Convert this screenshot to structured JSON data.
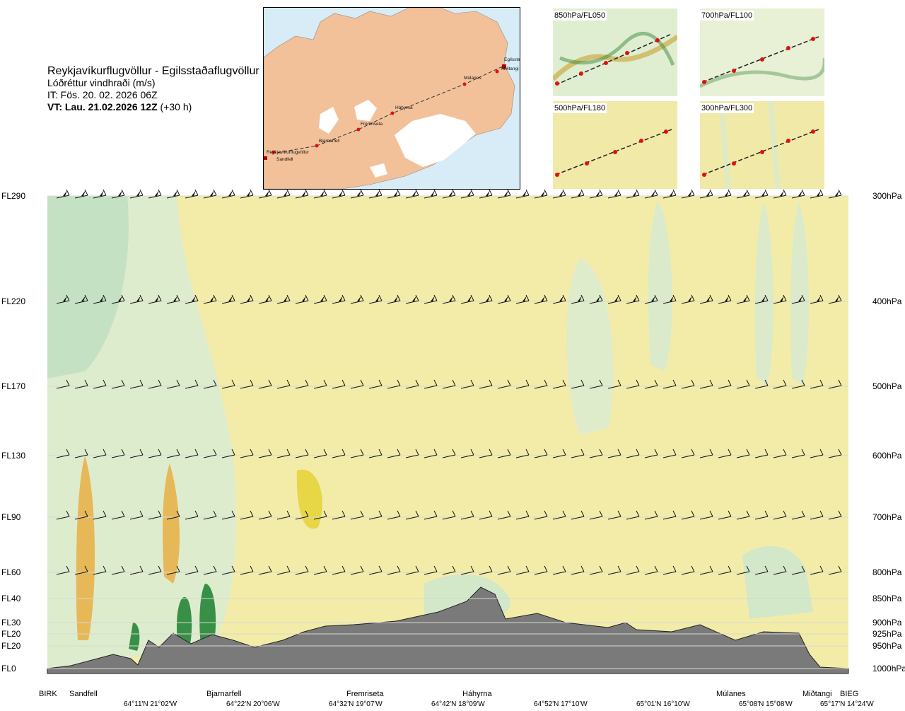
{
  "header": {
    "route": "Reykjavíkurflugvöllur - Egilsstaðaflugvöllur",
    "field": "Lóðréttur vindhraði (m/s)",
    "it": "IT: Fös. 20. 02. 2026 06Z",
    "vt_bold": "VT: Lau. 21.02.2026 12Z",
    "vt_lead": "(+30 h)"
  },
  "map": {
    "waypoints": [
      "Reykjavíkurflugvöllur",
      "Sandfell",
      "Bjarnarfell",
      "Fremriseta",
      "Háhyrna",
      "Múlanes",
      "Miðtangi",
      "Egilsstaðaflugvöllur"
    ]
  },
  "panels": [
    {
      "label": "850hPa/FL050"
    },
    {
      "label": "700hPa/FL100"
    },
    {
      "label": "500hPa/FL180"
    },
    {
      "label": "300hPa/FL300"
    }
  ],
  "colors": {
    "background": "#f3eca8",
    "terrain": "#7a7a7a",
    "route_points": "#e01010",
    "map_land": "#f1b98c",
    "map_sea": "#d7ecf7"
  },
  "chart_data": {
    "type": "heatmap",
    "title": "Reykjavíkurflugvöllur - Egilsstaðaflugvöllur",
    "variable": "Lóðréttur vindhraði (m/s)",
    "left_axis_labels": [
      "FL290",
      "FL220",
      "FL170",
      "FL130",
      "FL90",
      "FL60",
      "FL40",
      "FL30",
      "FL20",
      "FL20",
      "FL0"
    ],
    "right_axis_labels": [
      "300hPa",
      "400hPa",
      "500hPa",
      "600hPa",
      "700hPa",
      "800hPa",
      "850hPa",
      "900hPa",
      "925hPa",
      "950hPa",
      "1000hPa"
    ],
    "pressure_levels_hpa": [
      300,
      400,
      500,
      600,
      700,
      800,
      850,
      900,
      925,
      950,
      1000
    ],
    "waypoints": [
      "BIRK",
      "Sandfell",
      "Bjarnarfell",
      "Fremriseta",
      "Háhyrna",
      "Múlanes",
      "Miðtangi",
      "BIEG"
    ],
    "coordinates": [
      "64°11'N 21°02'W",
      "64°22'N 20°06'W",
      "64°32'N 19°07'W",
      "64°42'N 18°09'W",
      "64°52'N 17°10'W",
      "65°01'N 16°10'W",
      "65°08'N 15°08'W",
      "65°17'N 14°24'W"
    ],
    "grid": true,
    "legend": "none",
    "colorbar": "none"
  }
}
